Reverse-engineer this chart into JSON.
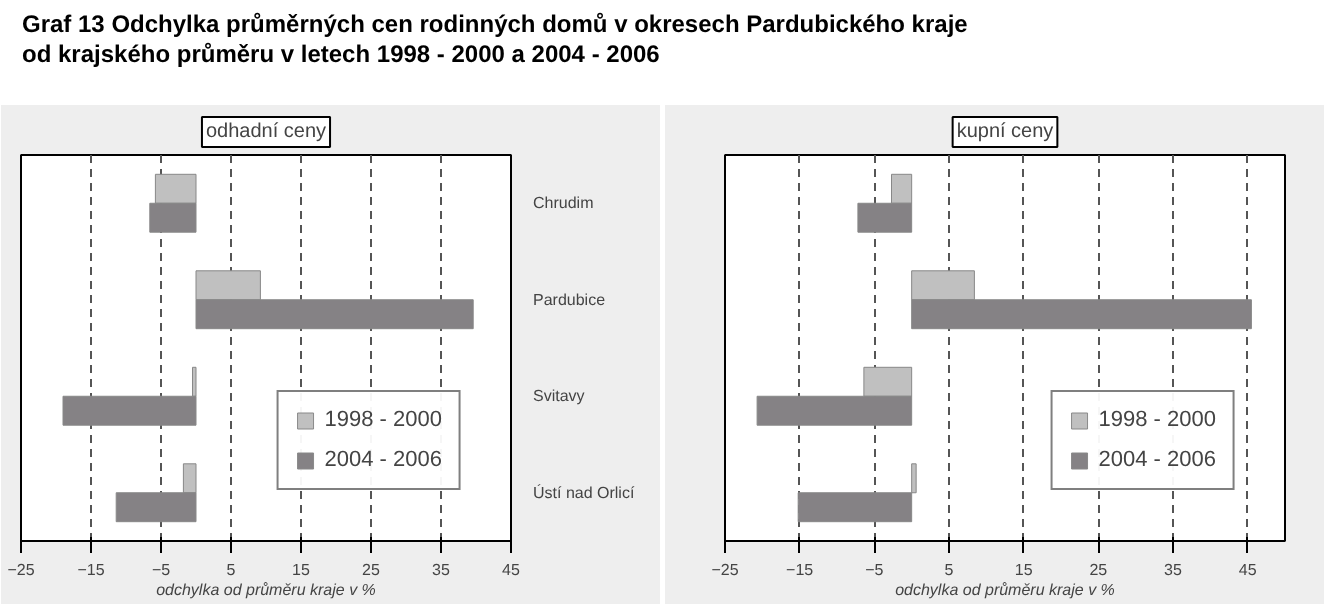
{
  "chart_data": [
    {
      "type": "other",
      "title": "Graf 13 Odchylka průměrných cen rodinných domů v okresech Pardubického kraje\nod krajského průměru v letech 1998 - 2000 a 2004 - 2006"
    },
    {
      "type": "bar",
      "orientation": "horizontal",
      "title": "odhadní ceny",
      "xlabel": "odchylka od průměru kraje v %",
      "categories": [
        "Chrudim",
        "Pardubice",
        "Svitavy",
        "Ústí nad Orlicí"
      ],
      "series": [
        {
          "name": "1998 - 2000",
          "color": "#c0c0c0",
          "values": [
            -5.8,
            9.2,
            -0.5,
            -1.8
          ]
        },
        {
          "name": "2004 - 2006",
          "color": "#858285",
          "values": [
            -6.6,
            39.6,
            -19.0,
            -11.4
          ]
        }
      ],
      "xlim": [
        -25,
        45
      ],
      "xticks": [
        -25,
        -15,
        -5,
        5,
        15,
        25,
        35,
        45
      ],
      "grid": "x",
      "legend": "bottom right"
    },
    {
      "type": "bar",
      "orientation": "horizontal",
      "title": "kupní ceny",
      "xlabel": "odchylka od průměru kraje v %",
      "categories": [
        null,
        null,
        null,
        null
      ],
      "series": [
        {
          "name": "1998 - 2000",
          "color": "#c0c0c0",
          "values": [
            -2.7,
            8.4,
            -6.4,
            0.6
          ]
        },
        {
          "name": "2004 - 2006",
          "color": "#858285",
          "values": [
            -7.2,
            45.5,
            -20.7,
            -15.2
          ]
        }
      ],
      "xlim": [
        -25,
        50
      ],
      "xticks": [
        -25,
        -15,
        -5,
        5,
        15,
        25,
        35,
        45
      ],
      "grid": "x",
      "legend": "bottom right",
      "tick_labels": "x"
    }
  ]
}
